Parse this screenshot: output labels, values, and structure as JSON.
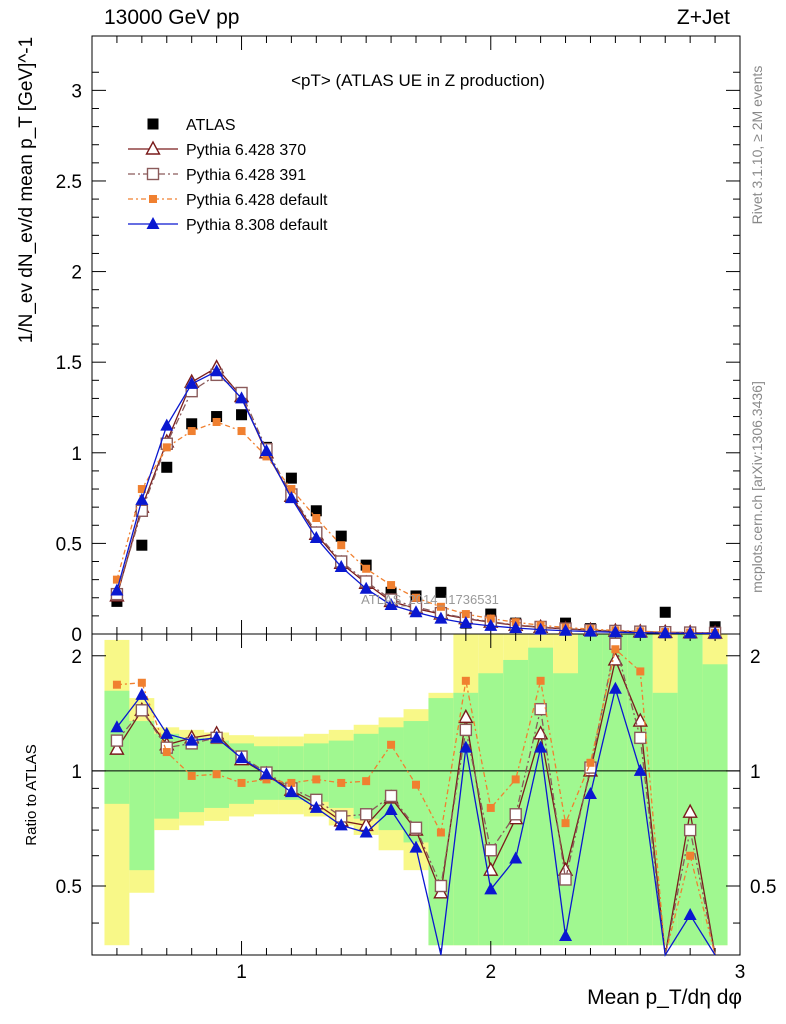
{
  "header": {
    "left": "13000 GeV pp",
    "right": "Z+Jet"
  },
  "side_labels": {
    "rivet": "Rivet 3.1.10, ≥ 2M events",
    "source": "mcplots.cern.ch [arXiv:1306.3436]"
  },
  "watermark": "ATLAS_2014_I1736531",
  "colors": {
    "atlas": "#000000",
    "p6_370": "#7a1c1c",
    "p6_391": "#8a5a5a",
    "p6_default": "#f08030",
    "p8_default": "#0a18d0",
    "band_green": "#a0f890",
    "band_yellow": "#f8f888"
  },
  "chart_data": {
    "type": "scatter",
    "title": "<pT> (ATLAS UE in Z production)",
    "xlabel": "Mean p_T/dη dφ",
    "ylabel": "1/N_ev dN_ev/d mean p_T [GeV]^-1",
    "ratio_ylabel": "Ratio to ATLAS",
    "xlim": [
      0.4,
      3.0
    ],
    "ylim": [
      0,
      3.3
    ],
    "ratio_ylim": [
      0.33,
      2.28
    ],
    "x_ticks": [
      "1",
      "2",
      "3"
    ],
    "y_ticks": [
      "0",
      "0.5",
      "1",
      "1.5",
      "2",
      "2.5",
      "3"
    ],
    "ratio_ticks": [
      "0.5",
      "1",
      "2"
    ],
    "legend_position": "top-left",
    "x": [
      0.5,
      0.6,
      0.7,
      0.8,
      0.9,
      1.0,
      1.1,
      1.2,
      1.3,
      1.4,
      1.5,
      1.6,
      1.7,
      1.8,
      1.9,
      2.0,
      2.1,
      2.2,
      2.3,
      2.4,
      2.5,
      2.6,
      2.7,
      2.8,
      2.9
    ],
    "series": [
      {
        "name": "ATLAS",
        "key": "atlas",
        "marker": "square",
        "values": [
          0.18,
          0.49,
          0.92,
          1.16,
          1.2,
          1.21,
          1.03,
          0.86,
          0.68,
          0.54,
          0.38,
          0.23,
          0.21,
          0.23,
          0.06,
          0.11,
          0.06,
          0.04,
          0.06,
          0.03,
          0.015,
          0.01,
          0.12,
          0.01,
          0.04
        ]
      },
      {
        "name": "Pythia 6.428 370",
        "key": "p6_370",
        "marker": "triangle-open",
        "values": [
          0.21,
          0.7,
          1.06,
          1.39,
          1.47,
          1.31,
          1.0,
          0.76,
          0.55,
          0.39,
          0.28,
          0.18,
          0.14,
          0.11,
          0.085,
          0.065,
          0.048,
          0.037,
          0.028,
          0.021,
          0.016,
          0.012,
          0.009,
          0.007,
          0.005
        ]
      },
      {
        "name": "Pythia 6.428 391",
        "key": "p6_391",
        "marker": "square-open",
        "values": [
          0.22,
          0.68,
          1.05,
          1.34,
          1.43,
          1.33,
          1.02,
          0.77,
          0.56,
          0.4,
          0.29,
          0.19,
          0.15,
          0.115,
          0.088,
          0.068,
          0.05,
          0.039,
          0.03,
          0.022,
          0.017,
          0.013,
          0.01,
          0.008,
          0.006
        ]
      },
      {
        "name": "Pythia 6.428 default",
        "key": "p6_default",
        "marker": "square-filled",
        "values": [
          0.3,
          0.8,
          1.03,
          1.12,
          1.17,
          1.12,
          0.98,
          0.8,
          0.64,
          0.49,
          0.36,
          0.27,
          0.2,
          0.15,
          0.11,
          0.085,
          0.065,
          0.048,
          0.036,
          0.027,
          0.02,
          0.015,
          0.011,
          0.008,
          0.006
        ]
      },
      {
        "name": "Pythia 8.308 default",
        "key": "p8_default",
        "marker": "triangle-filled",
        "values": [
          0.24,
          0.74,
          1.15,
          1.38,
          1.45,
          1.3,
          1.01,
          0.75,
          0.53,
          0.37,
          0.25,
          0.16,
          0.12,
          0.085,
          0.06,
          0.045,
          0.033,
          0.024,
          0.018,
          0.013,
          0.01,
          0.007,
          0.005,
          0.004,
          0.003
        ]
      }
    ],
    "ratios": {
      "p6_370": [
        1.14,
        1.44,
        1.17,
        1.22,
        1.25,
        1.07,
        0.98,
        0.89,
        0.82,
        0.74,
        0.72,
        0.85,
        0.7,
        0.48,
        1.38,
        0.55,
        0.75,
        1.25,
        0.55,
        1.0,
        1.95,
        1.35,
        0.2,
        0.78,
        0.2
      ],
      "p6_391": [
        1.2,
        1.44,
        1.15,
        1.18,
        1.22,
        1.09,
        0.99,
        0.9,
        0.84,
        0.76,
        0.77,
        0.86,
        0.71,
        0.5,
        1.28,
        0.62,
        0.77,
        1.45,
        0.52,
        1.02,
        2.15,
        1.22,
        0.2,
        0.7,
        0.2
      ],
      "p6_default": [
        1.68,
        1.7,
        1.12,
        0.97,
        0.98,
        0.93,
        0.95,
        0.93,
        0.95,
        0.93,
        0.94,
        1.17,
        0.92,
        0.69,
        1.72,
        0.8,
        0.95,
        1.72,
        0.73,
        1.05,
        2.08,
        1.82,
        0.2,
        0.6,
        0.2
      ],
      "p8_default": [
        1.3,
        1.58,
        1.25,
        1.2,
        1.22,
        1.08,
        0.98,
        0.88,
        0.8,
        0.72,
        0.69,
        0.79,
        0.63,
        0.33,
        1.15,
        0.49,
        0.59,
        1.15,
        0.37,
        0.87,
        1.64,
        1.0,
        0.2,
        0.42,
        0.2
      ]
    },
    "ratio_bands": {
      "inner": [
        [
          0.82,
          1.62
        ],
        [
          0.55,
          1.35
        ],
        [
          0.75,
          1.25
        ],
        [
          0.78,
          1.22
        ],
        [
          0.8,
          1.2
        ],
        [
          0.82,
          1.18
        ],
        [
          0.84,
          1.16
        ],
        [
          0.84,
          1.16
        ],
        [
          0.83,
          1.18
        ],
        [
          0.8,
          1.2
        ],
        [
          0.75,
          1.25
        ],
        [
          0.7,
          1.3
        ],
        [
          0.65,
          1.35
        ],
        [
          0.35,
          1.55
        ],
        [
          0.35,
          1.6
        ],
        [
          0.35,
          1.8
        ],
        [
          0.35,
          1.95
        ],
        [
          0.35,
          2.1
        ],
        [
          0.35,
          1.8
        ],
        [
          0.35,
          2.28
        ],
        [
          0.35,
          2.28
        ],
        [
          0.35,
          2.28
        ],
        [
          0.35,
          1.6
        ],
        [
          0.35,
          2.28
        ],
        [
          0.35,
          1.9
        ]
      ],
      "outer": [
        [
          0.35,
          2.2
        ],
        [
          0.48,
          1.55
        ],
        [
          0.7,
          1.3
        ],
        [
          0.72,
          1.28
        ],
        [
          0.74,
          1.26
        ],
        [
          0.76,
          1.24
        ],
        [
          0.77,
          1.23
        ],
        [
          0.77,
          1.23
        ],
        [
          0.76,
          1.25
        ],
        [
          0.72,
          1.28
        ],
        [
          0.68,
          1.32
        ],
        [
          0.62,
          1.38
        ],
        [
          0.55,
          1.45
        ],
        [
          0.35,
          1.6
        ],
        [
          0.35,
          2.28
        ],
        [
          0.35,
          2.28
        ],
        [
          0.35,
          2.28
        ],
        [
          0.35,
          2.28
        ],
        [
          0.35,
          2.28
        ],
        [
          0.35,
          2.28
        ],
        [
          0.35,
          2.28
        ],
        [
          0.35,
          2.28
        ],
        [
          0.35,
          2.28
        ],
        [
          0.35,
          2.28
        ],
        [
          0.35,
          2.28
        ]
      ]
    }
  }
}
